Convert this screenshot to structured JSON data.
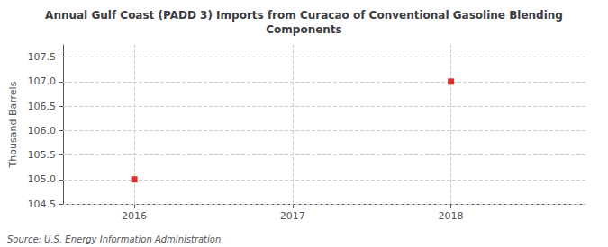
{
  "chart_data": {
    "type": "scatter",
    "title": "Annual Gulf Coast (PADD 3) Imports from Curacao of Conventional Gasoline Blending\nComponents",
    "ylabel": "Thousand Barrels",
    "annotation": "Source: U.S. Energy Information Administration",
    "x": [
      2016,
      2018
    ],
    "values": [
      105.0,
      107.0
    ],
    "color": "#cc0000",
    "marker": "square",
    "xlim": [
      2015.55,
      2018.85
    ],
    "xticks": [
      2016,
      2017,
      2018
    ],
    "ylim": [
      104.5,
      107.75
    ],
    "yticks": [
      104.5,
      {
        "value": 105.0,
        "label": "105.0"
      },
      105.5,
      {
        "value": 106.0,
        "label": "106.0"
      },
      106.5,
      {
        "value": 107.0,
        "label": "107.0"
      },
      107.5
    ],
    "grid": true
  }
}
